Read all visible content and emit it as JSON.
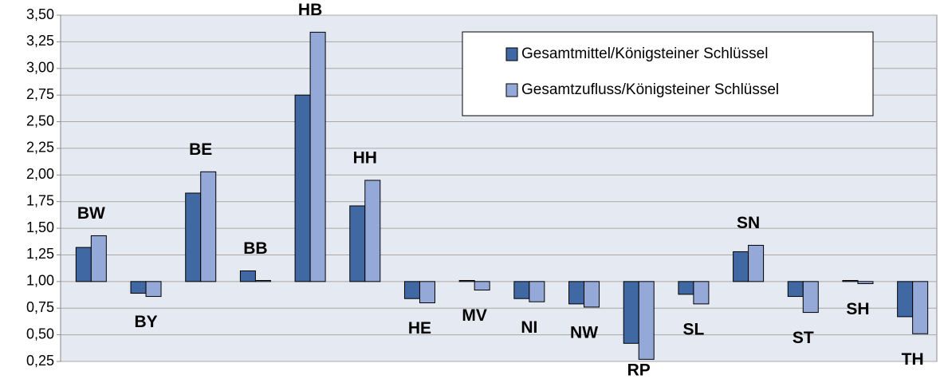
{
  "chart_data": {
    "type": "bar",
    "categories": [
      "BW",
      "BY",
      "BE",
      "BB",
      "HB",
      "HH",
      "HE",
      "MV",
      "NI",
      "NW",
      "RP",
      "SL",
      "SN",
      "ST",
      "SH",
      "TH"
    ],
    "series": [
      {
        "name": "Gesamtmittel/Königsteiner Schlüssel",
        "color": "#4068a3",
        "values": [
          1.32,
          0.89,
          1.83,
          1.1,
          2.75,
          1.71,
          0.84,
          1.01,
          0.84,
          0.79,
          0.42,
          0.88,
          1.28,
          0.86,
          1.01,
          0.67
        ]
      },
      {
        "name": "Gesamtzufluss/Königsteiner Schlüssel",
        "color": "#95a9d8",
        "values": [
          1.43,
          0.86,
          2.03,
          1.01,
          3.34,
          1.95,
          0.8,
          0.92,
          0.81,
          0.76,
          0.27,
          0.79,
          1.34,
          0.71,
          0.98,
          0.51
        ]
      }
    ],
    "baseline": 1,
    "ylim": [
      0.25,
      3.5
    ],
    "yticks": [
      {
        "value": 0.25,
        "label": "0,25"
      },
      {
        "value": 0.5,
        "label": "0,50"
      },
      {
        "value": 0.75,
        "label": "0,75"
      },
      {
        "value": 1,
        "label": "1,00"
      },
      {
        "value": 1.25,
        "label": "1,25"
      },
      {
        "value": 1.5,
        "label": "1,50"
      },
      {
        "value": 1.75,
        "label": "1,75"
      },
      {
        "value": 2,
        "label": "2,00"
      },
      {
        "value": 2.25,
        "label": "2,25"
      },
      {
        "value": 2.5,
        "label": "2,50"
      },
      {
        "value": 2.75,
        "label": "2,75"
      },
      {
        "value": 3,
        "label": "3,00"
      },
      {
        "value": 3.25,
        "label": "3,25"
      },
      {
        "value": 3.5,
        "label": "3,50"
      }
    ],
    "grid": true,
    "legend": "top-right"
  }
}
